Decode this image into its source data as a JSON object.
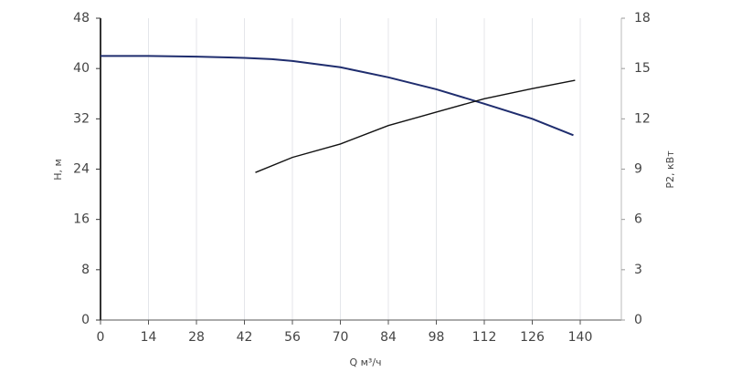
{
  "chart_data": {
    "type": "line",
    "xlabel": "Q м³/ч",
    "ylabel": "H, м",
    "y2label": "P2, кВт",
    "xlim": [
      0,
      152
    ],
    "xticks": [
      0,
      14,
      28,
      42,
      56,
      70,
      84,
      98,
      112,
      126,
      140
    ],
    "ylim": [
      0,
      48
    ],
    "yticks": [
      0,
      8,
      16,
      24,
      32,
      40,
      48
    ],
    "y2lim": [
      0,
      18
    ],
    "y2ticks": [
      0,
      3,
      6,
      9,
      12,
      15,
      18
    ],
    "grid": true,
    "series": [
      {
        "color": "#1f2d6e",
        "x": [
          0,
          14,
          28,
          42,
          50,
          56,
          70,
          84,
          98,
          112,
          126,
          138
        ],
        "values": [
          42.0,
          42.0,
          41.9,
          41.7,
          41.5,
          41.2,
          40.2,
          38.6,
          36.7,
          34.4,
          32.0,
          29.4
        ]
      },
      {
        "color": "#111111",
        "axis": "y2",
        "x": [
          45.2,
          56,
          70,
          84,
          98,
          112,
          126,
          138.5
        ],
        "values": [
          8.8,
          9.7,
          10.5,
          11.6,
          12.4,
          13.2,
          13.8,
          14.3
        ]
      }
    ]
  }
}
